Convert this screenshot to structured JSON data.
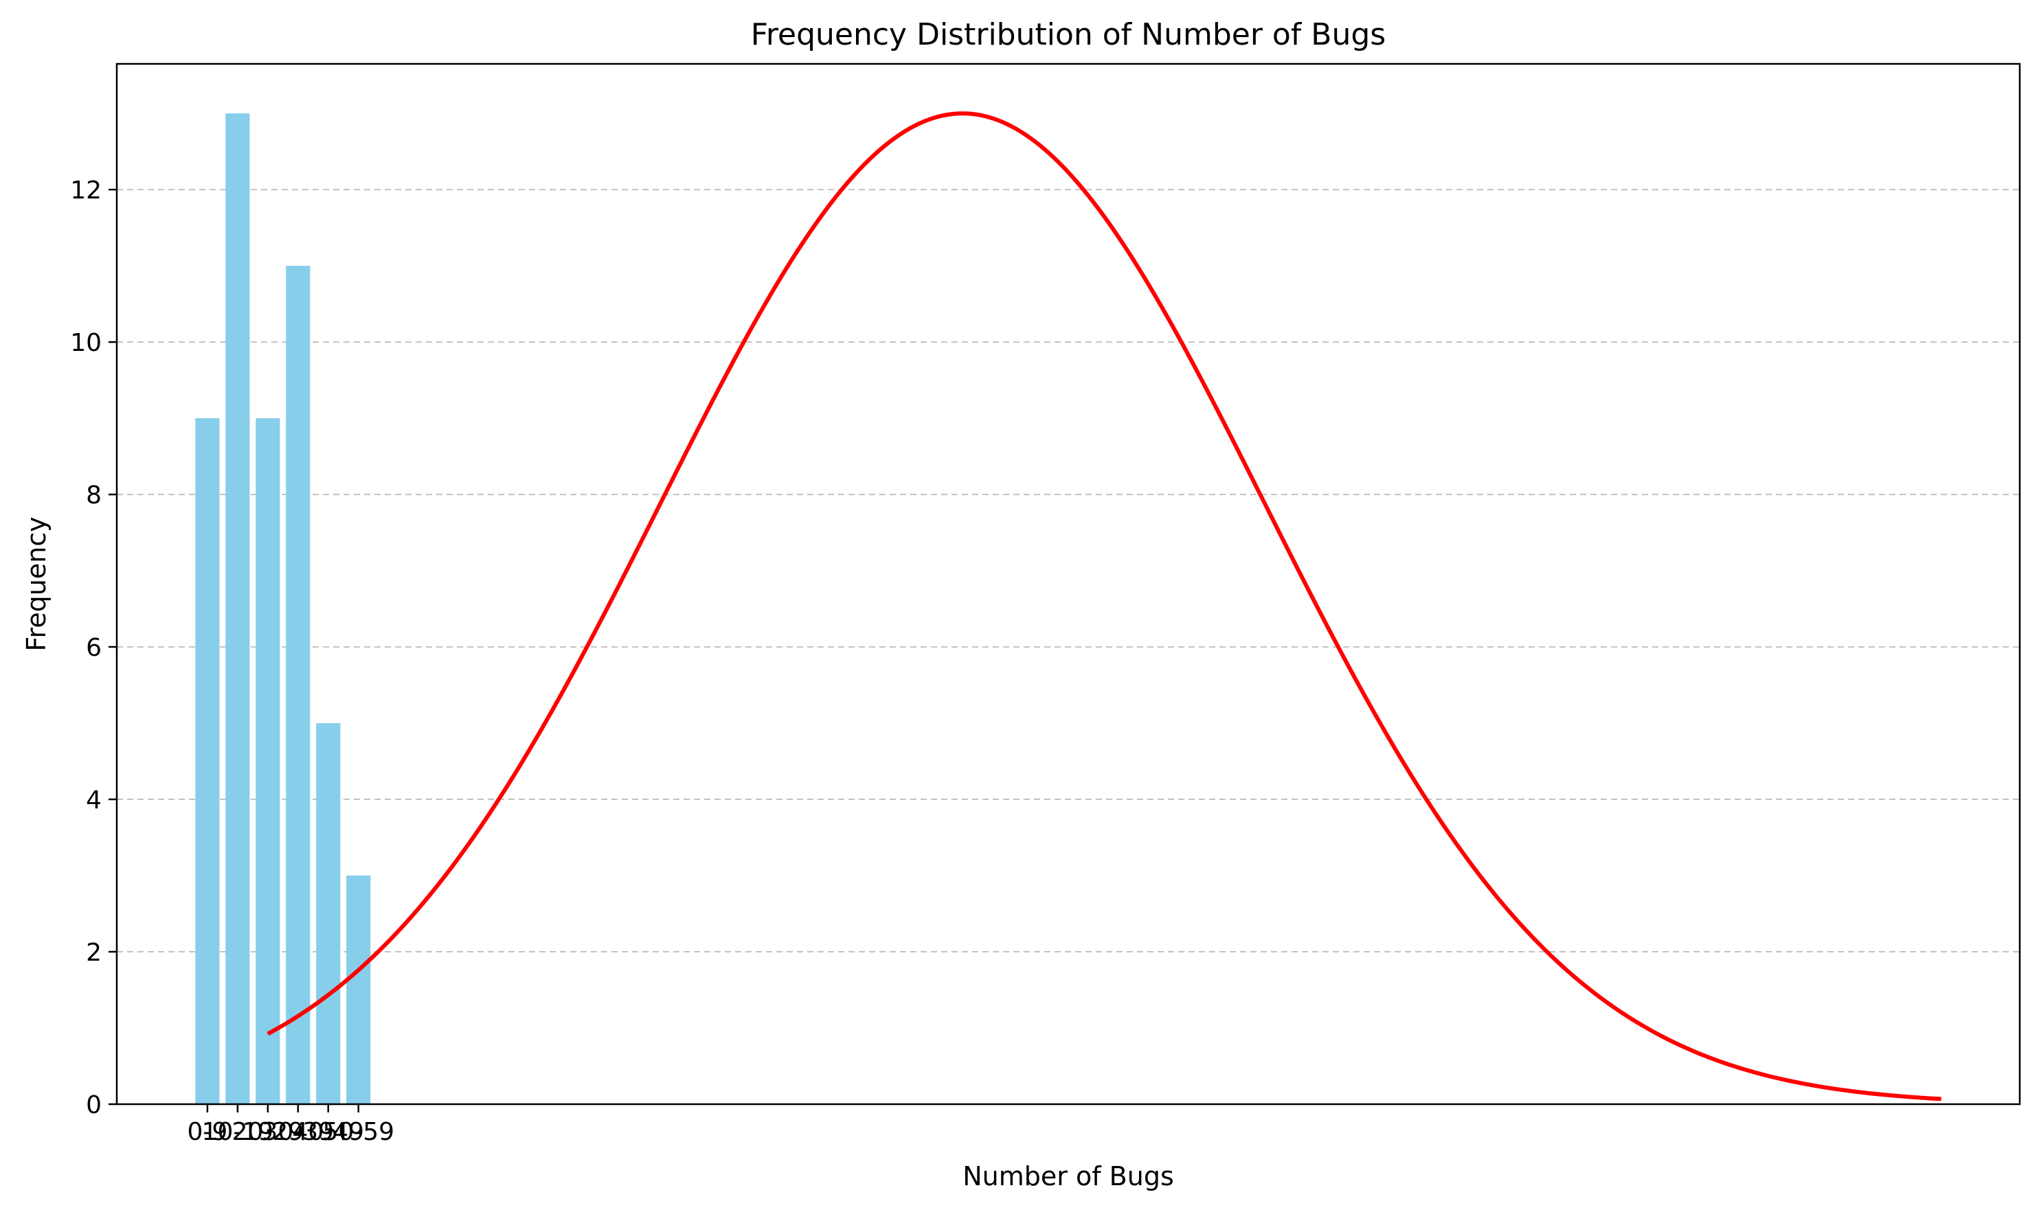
{
  "chart_data": {
    "type": "bar",
    "title": "Frequency Distribution of Number of Bugs",
    "xlabel": "Number of Bugs",
    "ylabel": "Frequency",
    "categories": [
      "0-9",
      "10-19",
      "20-29",
      "30-39",
      "40-49",
      "50-59"
    ],
    "values": [
      9,
      13,
      9,
      11,
      5,
      3
    ],
    "ylim": [
      0,
      13.65
    ],
    "xlim": [
      -3.0,
      60.0
    ],
    "yticks": [
      0,
      2,
      4,
      6,
      8,
      10,
      12
    ],
    "grid": "horizontal dashed",
    "bar_color": "#87CEEB",
    "curve": {
      "type": "line",
      "color": "#FF0000",
      "x_start": 2.0,
      "x_end": 57.4,
      "peak_x": 25.0,
      "peak_y": 13.0,
      "sigma": 10.0
    }
  }
}
